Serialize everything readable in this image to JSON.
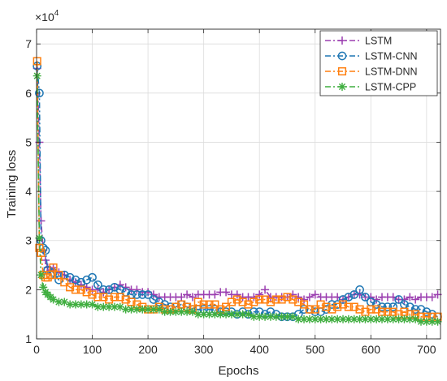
{
  "chart_data": {
    "type": "line",
    "title": "",
    "xlabel": "Epochs",
    "ylabel": "Training loss",
    "y_multiplier_label": "×10",
    "y_multiplier_exponent": "4",
    "xlim": [
      0,
      725
    ],
    "ylim": [
      1,
      7.3
    ],
    "x_ticks": [
      0,
      100,
      200,
      300,
      400,
      500,
      600,
      700
    ],
    "y_ticks": [
      1,
      2,
      3,
      4,
      5,
      6,
      7
    ],
    "grid": true,
    "legend_position": "top-right",
    "series": [
      {
        "name": "LSTM",
        "color": "#9b3fb0",
        "marker": "plus",
        "x": [
          1,
          5,
          8,
          12,
          16,
          20,
          25,
          30,
          40,
          50,
          60,
          70,
          80,
          90,
          100,
          110,
          120,
          130,
          140,
          150,
          160,
          170,
          180,
          190,
          200,
          210,
          220,
          230,
          240,
          250,
          260,
          270,
          280,
          290,
          300,
          310,
          320,
          330,
          340,
          350,
          360,
          370,
          380,
          390,
          400,
          410,
          420,
          430,
          440,
          450,
          460,
          470,
          480,
          490,
          500,
          510,
          520,
          530,
          540,
          550,
          560,
          570,
          580,
          590,
          600,
          610,
          620,
          630,
          640,
          650,
          660,
          670,
          680,
          690,
          700,
          710,
          720
        ],
        "values": [
          6.5,
          5.0,
          3.4,
          2.8,
          2.6,
          2.45,
          2.4,
          2.45,
          2.35,
          2.3,
          2.2,
          2.15,
          2.1,
          2.05,
          2.0,
          2.0,
          1.95,
          2.0,
          2.05,
          2.1,
          2.05,
          2.0,
          2.0,
          1.95,
          1.95,
          1.9,
          1.85,
          1.85,
          1.85,
          1.85,
          1.85,
          1.9,
          1.85,
          1.9,
          1.9,
          1.9,
          1.9,
          1.95,
          1.95,
          1.9,
          1.9,
          1.85,
          1.85,
          1.85,
          1.9,
          2.0,
          1.85,
          1.85,
          1.85,
          1.85,
          1.9,
          1.85,
          1.8,
          1.85,
          1.9,
          1.85,
          1.85,
          1.85,
          1.85,
          1.8,
          1.85,
          1.9,
          1.9,
          1.85,
          1.85,
          1.8,
          1.85,
          1.85,
          1.85,
          1.8,
          1.8,
          1.85,
          1.8,
          1.85,
          1.85,
          1.85,
          1.9
        ]
      },
      {
        "name": "LSTM-CNN",
        "color": "#1f77b4",
        "marker": "circle",
        "x": [
          1,
          5,
          8,
          12,
          16,
          20,
          25,
          30,
          40,
          50,
          60,
          70,
          80,
          90,
          100,
          110,
          120,
          130,
          140,
          150,
          160,
          170,
          180,
          190,
          200,
          210,
          220,
          230,
          240,
          250,
          260,
          270,
          280,
          290,
          300,
          310,
          320,
          330,
          340,
          350,
          360,
          370,
          380,
          390,
          400,
          410,
          420,
          430,
          440,
          450,
          460,
          470,
          480,
          490,
          500,
          510,
          520,
          530,
          540,
          550,
          560,
          570,
          580,
          590,
          600,
          610,
          620,
          630,
          640,
          650,
          660,
          670,
          680,
          690,
          700,
          710,
          720
        ],
        "values": [
          6.55,
          6.0,
          3.0,
          2.85,
          2.8,
          2.4,
          2.3,
          2.35,
          2.2,
          2.3,
          2.25,
          2.2,
          2.15,
          2.2,
          2.25,
          2.1,
          2.0,
          2.0,
          2.05,
          2.0,
          1.95,
          1.9,
          1.9,
          1.9,
          1.9,
          1.8,
          1.75,
          1.7,
          1.65,
          1.65,
          1.7,
          1.65,
          1.6,
          1.6,
          1.6,
          1.6,
          1.6,
          1.55,
          1.55,
          1.55,
          1.5,
          1.55,
          1.5,
          1.55,
          1.55,
          1.5,
          1.55,
          1.5,
          1.45,
          1.45,
          1.45,
          1.5,
          1.6,
          1.6,
          1.55,
          1.55,
          1.6,
          1.7,
          1.7,
          1.8,
          1.85,
          1.9,
          2.0,
          1.85,
          1.75,
          1.7,
          1.65,
          1.65,
          1.65,
          1.8,
          1.7,
          1.65,
          1.6,
          1.6,
          1.55,
          1.5,
          1.45
        ]
      },
      {
        "name": "LSTM-DNN",
        "color": "#ff7f0e",
        "marker": "square",
        "x": [
          1,
          5,
          8,
          12,
          16,
          20,
          25,
          30,
          40,
          50,
          60,
          70,
          80,
          90,
          100,
          110,
          120,
          130,
          140,
          150,
          160,
          170,
          180,
          190,
          200,
          210,
          220,
          230,
          240,
          250,
          260,
          270,
          280,
          290,
          300,
          310,
          320,
          330,
          340,
          350,
          360,
          370,
          380,
          390,
          400,
          410,
          420,
          430,
          440,
          450,
          460,
          470,
          480,
          490,
          500,
          510,
          520,
          530,
          540,
          550,
          560,
          570,
          580,
          590,
          600,
          610,
          620,
          630,
          640,
          650,
          660,
          670,
          680,
          690,
          700,
          710,
          720
        ],
        "values": [
          6.65,
          2.85,
          2.75,
          2.3,
          2.25,
          2.25,
          2.3,
          2.45,
          2.3,
          2.15,
          2.05,
          2.0,
          2.0,
          1.95,
          1.9,
          1.85,
          1.85,
          1.8,
          1.85,
          1.85,
          1.8,
          1.75,
          1.7,
          1.65,
          1.6,
          1.6,
          1.65,
          1.6,
          1.6,
          1.65,
          1.7,
          1.65,
          1.6,
          1.75,
          1.7,
          1.7,
          1.7,
          1.6,
          1.65,
          1.75,
          1.8,
          1.75,
          1.7,
          1.75,
          1.8,
          1.8,
          1.75,
          1.8,
          1.8,
          1.85,
          1.8,
          1.75,
          1.7,
          1.6,
          1.6,
          1.7,
          1.65,
          1.6,
          1.65,
          1.7,
          1.65,
          1.65,
          1.6,
          1.55,
          1.6,
          1.6,
          1.55,
          1.55,
          1.55,
          1.5,
          1.55,
          1.5,
          1.5,
          1.45,
          1.45,
          1.45,
          1.45
        ]
      },
      {
        "name": "LSTM-CPP",
        "color": "#3fae3f",
        "marker": "asterisk",
        "x": [
          1,
          5,
          8,
          12,
          16,
          20,
          25,
          30,
          40,
          50,
          60,
          70,
          80,
          90,
          100,
          110,
          120,
          130,
          140,
          150,
          160,
          170,
          180,
          190,
          200,
          210,
          220,
          230,
          240,
          250,
          260,
          270,
          280,
          290,
          300,
          310,
          320,
          330,
          340,
          350,
          360,
          370,
          380,
          390,
          400,
          410,
          420,
          430,
          440,
          450,
          460,
          470,
          480,
          490,
          500,
          510,
          520,
          530,
          540,
          550,
          560,
          570,
          580,
          590,
          600,
          610,
          620,
          630,
          640,
          650,
          660,
          670,
          680,
          690,
          700,
          710,
          720
        ],
        "values": [
          6.35,
          3.05,
          2.3,
          2.05,
          1.95,
          1.9,
          1.85,
          1.8,
          1.75,
          1.75,
          1.7,
          1.7,
          1.7,
          1.7,
          1.7,
          1.65,
          1.65,
          1.65,
          1.65,
          1.65,
          1.6,
          1.6,
          1.6,
          1.6,
          1.6,
          1.6,
          1.6,
          1.55,
          1.55,
          1.55,
          1.55,
          1.55,
          1.55,
          1.5,
          1.5,
          1.5,
          1.5,
          1.5,
          1.5,
          1.5,
          1.5,
          1.5,
          1.5,
          1.45,
          1.45,
          1.45,
          1.45,
          1.45,
          1.45,
          1.45,
          1.45,
          1.4,
          1.4,
          1.4,
          1.4,
          1.4,
          1.4,
          1.4,
          1.4,
          1.4,
          1.4,
          1.4,
          1.4,
          1.4,
          1.4,
          1.4,
          1.4,
          1.4,
          1.4,
          1.4,
          1.4,
          1.4,
          1.4,
          1.35,
          1.35,
          1.35,
          1.35
        ]
      }
    ]
  }
}
